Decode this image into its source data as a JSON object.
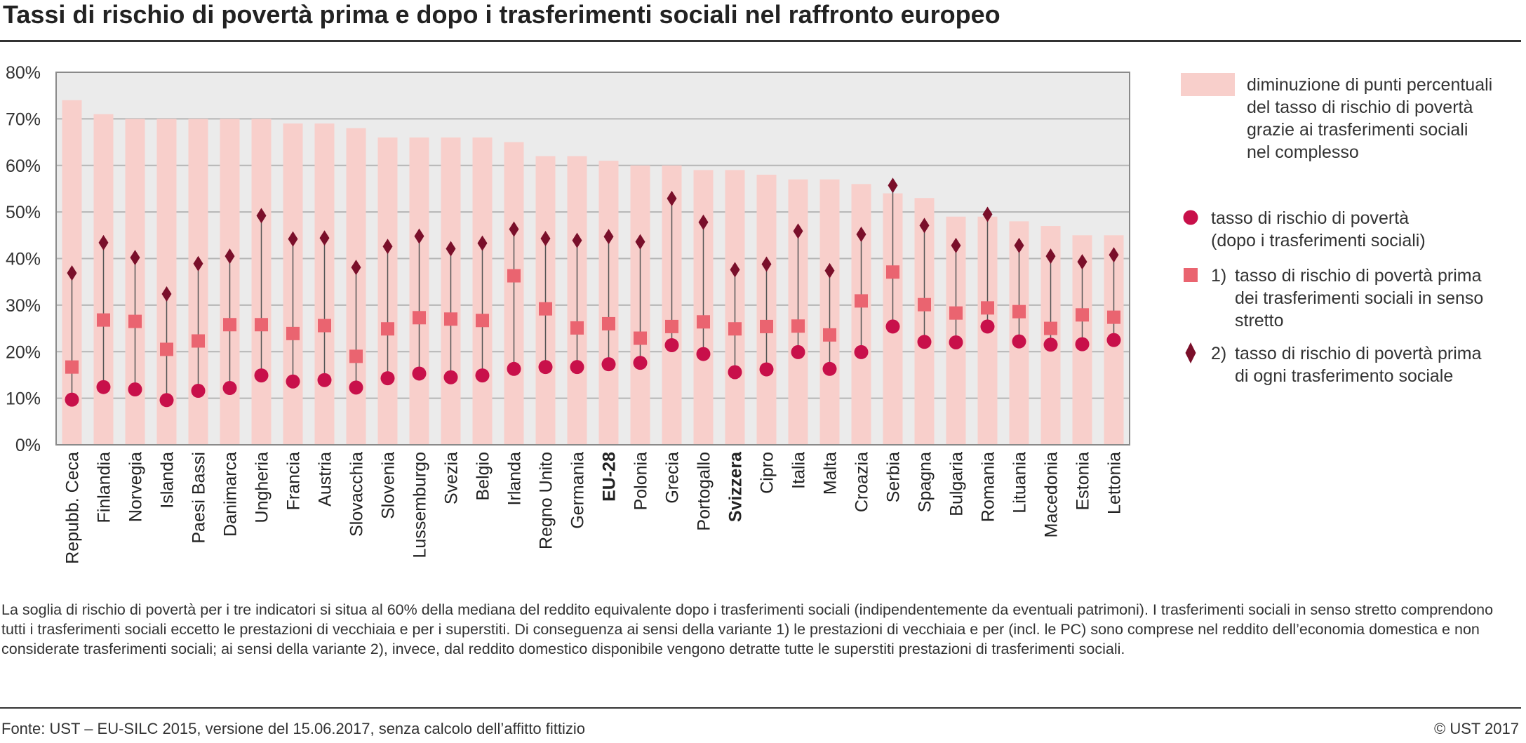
{
  "title": "Tassi di rischio di povertà prima e dopo i trasferimenti sociali nel raffronto europeo",
  "legend": {
    "bar_lines": [
      "diminuzione di punti percentuali",
      "del tasso di rischio di povertà",
      "grazie ai trasferimenti sociali",
      "nel complesso"
    ],
    "circle_lines": [
      "tasso di rischio di povertà",
      "(dopo i trasferimenti sociali)"
    ],
    "square_number": "1)",
    "square_lines": [
      "tasso di rischio di povertà prima",
      "dei trasferimenti sociali in senso",
      "stretto"
    ],
    "diamond_number": "2)",
    "diamond_lines": [
      "tasso di rischio di povertà prima",
      "di ogni trasferimento sociale"
    ]
  },
  "note": "La soglia di rischio di povertà per i tre indicatori si situa al 60% della mediana del reddito equivalente dopo i trasferimenti sociali (indipendentemente da eventuali patrimoni). I trasferimenti sociali in senso stretto comprendono tutti i trasferimenti sociali eccetto le prestazioni di vecchiaia e per i superstiti. Di conseguenza ai sensi della variante 1) le prestazioni di vecchiaia e per (incl. le PC) sono comprese nel reddito dell’economia domestica e non considerate trasferimenti sociali; ai sensi della variante 2), invece, dal reddito domestico disponibile vengono detratte tutte le superstiti prestazioni di trasferimenti sociali.",
  "source": "Fonte: UST – EU-SILC 2015, versione del 15.06.2017, senza calcolo dell’affitto fittizio",
  "copyright": "© UST 2017",
  "colors": {
    "bar": "#f8cfcb",
    "circle": "#c8104a",
    "square": "#ea6470",
    "diamond": "#7a0f2a",
    "plot_bg": "#ebebeb",
    "grid": "#b5b5b5"
  },
  "chart_data": {
    "type": "bar",
    "ylim": [
      0,
      80
    ],
    "yticks": [
      "0%",
      "10%",
      "20%",
      "30%",
      "40%",
      "50%",
      "60%",
      "70%",
      "80%"
    ],
    "bold_categories": [
      "EU-28",
      "Svizzera"
    ],
    "categories": [
      "Repubb. Ceca",
      "Finlandia",
      "Norvegia",
      "Islanda",
      "Paesi Bassi",
      "Danimarca",
      "Ungheria",
      "Francia",
      "Austria",
      "Slovacchia",
      "Slovenia",
      "Lussemburgo",
      "Svezia",
      "Belgio",
      "Irlanda",
      "Regno Unito",
      "Germania",
      "EU-28",
      "Polonia",
      "Grecia",
      "Portogallo",
      "Svizzera",
      "Cipro",
      "Italia",
      "Malta",
      "Croazia",
      "Serbia",
      "Spagna",
      "Bulgaria",
      "Romania",
      "Lituania",
      "Macedonia",
      "Estonia",
      "Lettonia"
    ],
    "series": [
      {
        "name": "diminuzione di punti percentuali del tasso di rischio di povertà grazie ai trasferimenti sociali nel complesso",
        "mark": "bar",
        "values": [
          74,
          71,
          70,
          70,
          70,
          70,
          70,
          69,
          69,
          68,
          66,
          66,
          66,
          66,
          65,
          62,
          62,
          61,
          60,
          60,
          59,
          59,
          58,
          57,
          57,
          56,
          54,
          53,
          49,
          49,
          48,
          47,
          45,
          45
        ]
      },
      {
        "name": "tasso di rischio di povertà (dopo i trasferimenti sociali)",
        "mark": "circle",
        "values": [
          9.7,
          12.4,
          11.9,
          9.6,
          11.6,
          12.2,
          14.9,
          13.6,
          13.9,
          12.3,
          14.3,
          15.3,
          14.5,
          14.9,
          16.3,
          16.7,
          16.7,
          17.3,
          17.6,
          21.4,
          19.5,
          15.6,
          16.2,
          19.9,
          16.3,
          19.9,
          25.4,
          22.1,
          22.0,
          25.4,
          22.2,
          21.5,
          21.6,
          22.5
        ]
      },
      {
        "name": "tasso di rischio di povertà prima dei trasferimenti sociali in senso stretto",
        "mark": "square",
        "values": [
          16.7,
          26.8,
          26.5,
          20.5,
          22.3,
          25.8,
          25.8,
          23.9,
          25.6,
          19.0,
          24.9,
          27.3,
          27.0,
          26.7,
          36.3,
          29.2,
          25.1,
          26.0,
          22.9,
          25.4,
          26.4,
          24.9,
          25.4,
          25.5,
          23.6,
          30.9,
          37.1,
          30.1,
          28.3,
          29.4,
          28.6,
          25.0,
          27.9,
          27.4
        ]
      },
      {
        "name": "tasso di rischio di povertà prima di ogni trasferimento sociale",
        "mark": "diamond",
        "values": [
          36.9,
          43.4,
          40.2,
          32.4,
          38.9,
          40.5,
          49.2,
          44.2,
          44.4,
          38.1,
          42.6,
          44.8,
          42.1,
          43.3,
          46.3,
          44.3,
          43.9,
          44.7,
          43.6,
          52.9,
          47.8,
          37.6,
          38.8,
          45.9,
          37.4,
          45.2,
          55.7,
          47.1,
          42.8,
          49.5,
          42.8,
          40.5,
          39.3,
          40.8
        ]
      }
    ]
  }
}
